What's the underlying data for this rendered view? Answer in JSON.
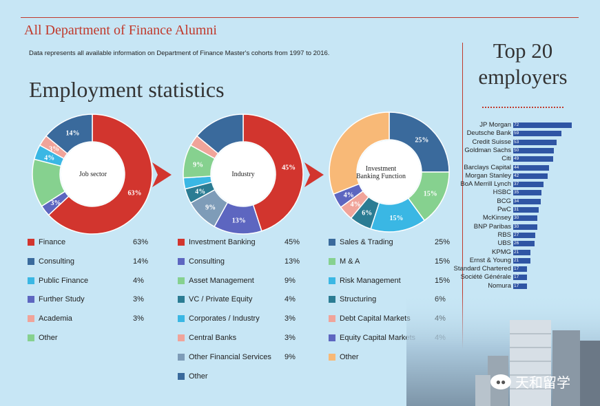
{
  "header": {
    "department_title": "All Department of Finance Alumni",
    "note": "Data represents all available information on Department of Finance Master's cohorts from 1997 to 2016.",
    "main_title": "Employment statistics"
  },
  "colors": {
    "red": "#d2352e",
    "dark_blue": "#3a6a9c",
    "cyan": "#3ab7e4",
    "periwinkle": "#5d66c0",
    "salmon": "#f0a49a",
    "green": "#86d18f",
    "teal": "#2b7c93",
    "grey_blue": "#7e9cb8",
    "orange": "#f8b977",
    "deep_blue": "#27578f"
  },
  "chart_data": [
    {
      "type": "pie",
      "title": "Job sector",
      "categories": [
        "Finance",
        "Consulting",
        "Public Finance",
        "Further Study",
        "Academia",
        "Other"
      ],
      "values": [
        63,
        14,
        4,
        3,
        3,
        13
      ],
      "value_labels": [
        "63%",
        "14%",
        "4%",
        "3%",
        "3%",
        ""
      ],
      "legend_values": [
        "63%",
        "14%",
        "4%",
        "3%",
        "3%",
        ""
      ],
      "colors": [
        "#d2352e",
        "#3a6a9c",
        "#3ab7e4",
        "#5d66c0",
        "#f0a49a",
        "#86d18f"
      ],
      "drawing_order": [
        0,
        3,
        5,
        2,
        4,
        1
      ]
    },
    {
      "type": "pie",
      "title": "Industry",
      "categories": [
        "Investment Banking",
        "Consulting",
        "Asset Management",
        "VC / Private Equity",
        "Corporates / Industry",
        "Central Banks",
        "Other Financial Services",
        "Other"
      ],
      "values": [
        45,
        13,
        9,
        4,
        3,
        3,
        9,
        14
      ],
      "value_labels": [
        "45%",
        "13%",
        "9%",
        "4%",
        "",
        "",
        "9%",
        ""
      ],
      "legend_values": [
        "45%",
        "13%",
        "9%",
        "4%",
        "3%",
        "3%",
        "9%",
        ""
      ],
      "colors": [
        "#d2352e",
        "#5d66c0",
        "#86d18f",
        "#2b7c93",
        "#3ab7e4",
        "#f0a49a",
        "#7e9cb8",
        "#3a6a9c"
      ],
      "drawing_order": [
        0,
        1,
        6,
        3,
        4,
        2,
        5,
        7
      ]
    },
    {
      "type": "pie",
      "title": "Investment Banking Function",
      "categories": [
        "Sales & Trading",
        "M & A",
        "Risk Management",
        "Structuring",
        "Debt Capital Markets",
        "Equity Capital Markets",
        "Other"
      ],
      "values": [
        25,
        15,
        15,
        6,
        4,
        4,
        31
      ],
      "value_labels": [
        "25%",
        "15%",
        "15%",
        "6%",
        "4%",
        "4%",
        ""
      ],
      "legend_values": [
        "25%",
        "15%",
        "15%",
        "6%",
        "4%",
        "4%",
        ""
      ],
      "colors": [
        "#3a6a9c",
        "#86d18f",
        "#3ab7e4",
        "#2b7c93",
        "#f0a49a",
        "#5d66c0",
        "#f8b977"
      ],
      "drawing_order": [
        0,
        1,
        2,
        3,
        4,
        5,
        6
      ]
    },
    {
      "type": "bar",
      "orientation": "horizontal",
      "title": "Top 20 employers",
      "categories": [
        "JP Morgan",
        "Deutsche Bank",
        "Credit Suisse",
        "Goldman Sachs",
        "Citi",
        "Barclays Capital",
        "Morgan Stanley",
        "BoA Merrill Lynch",
        "HSBC",
        "BCG",
        "PwC",
        "McKinsey",
        "BNP Paribas",
        "RBS",
        "UBS",
        "KPMG",
        "Ernst & Young",
        "Standard Chartered",
        "Société Générale",
        "Nomura"
      ],
      "values": [
        72,
        59,
        53,
        50,
        49,
        44,
        42,
        37,
        35,
        34,
        31,
        30,
        30,
        27,
        26,
        21,
        21,
        17,
        17,
        17
      ],
      "color": "#2f55a4"
    }
  ]
}
